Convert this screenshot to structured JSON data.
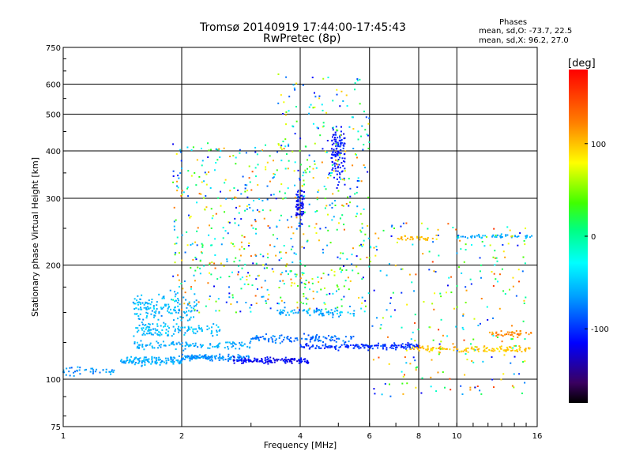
{
  "chart_data": {
    "type": "scatter",
    "title": "Tromsø 20140919 17:44:00-17:45:43",
    "subtitle": "RwPretec (8p)",
    "xlabel": "Frequency [MHz]",
    "ylabel": "Stationary phase Virtual Height [km]",
    "x_scale": "log",
    "y_scale": "log",
    "xlim": [
      1,
      16
    ],
    "ylim": [
      75,
      750
    ],
    "x_ticks": [
      1,
      2,
      4,
      6,
      8,
      10,
      16
    ],
    "y_ticks": [
      75,
      100,
      200,
      300,
      400,
      500,
      600,
      750
    ],
    "grid": true,
    "phases_box": {
      "title": "Phases",
      "line_o": "mean, sd,O: -73.7, 22.5",
      "line_x": "mean, sd,X:  96.2, 27.0"
    },
    "colorbar": {
      "label": "[deg]",
      "range": [
        -180,
        180
      ],
      "ticks": [
        100,
        0,
        -100
      ],
      "colormap": "rainbow-black-to-red"
    },
    "traces": [
      {
        "x_start": 1.0,
        "x_end": 1.35,
        "y": 105,
        "spread": 4,
        "phase": -70,
        "count": 40
      },
      {
        "x_start": 1.4,
        "x_end": 2.0,
        "y": 112,
        "spread": 4,
        "phase": -60,
        "count": 120
      },
      {
        "x_start": 2.0,
        "x_end": 3.0,
        "y": 114,
        "spread": 3,
        "phase": -70,
        "count": 120
      },
      {
        "x_start": 2.7,
        "x_end": 4.2,
        "y": 112,
        "spread": 3,
        "phase": -115,
        "count": 130
      },
      {
        "x_start": 4.0,
        "x_end": 8.0,
        "y": 122,
        "spread": 3,
        "phase": -100,
        "count": 160
      },
      {
        "x_start": 7.5,
        "x_end": 15.5,
        "y": 120,
        "spread": 3,
        "phase": 100,
        "count": 120
      },
      {
        "x_start": 1.5,
        "x_end": 3.0,
        "y": 123,
        "spread": 5,
        "phase": -60,
        "count": 110
      },
      {
        "x_start": 1.5,
        "x_end": 2.5,
        "y": 135,
        "spread": 8,
        "phase": -55,
        "count": 120
      },
      {
        "x_start": 1.5,
        "x_end": 2.2,
        "y": 155,
        "spread": 20,
        "phase": -55,
        "count": 150
      },
      {
        "x_start": 3.0,
        "x_end": 5.5,
        "y": 128,
        "spread": 5,
        "phase": -80,
        "count": 110
      },
      {
        "x_start": 3.5,
        "x_end": 5.5,
        "y": 150,
        "spread": 6,
        "phase": -60,
        "count": 80
      },
      {
        "x_start": 4.8,
        "x_end": 5.2,
        "y": 400,
        "spread": 90,
        "phase": -110,
        "count": 110
      },
      {
        "x_start": 3.9,
        "x_end": 4.1,
        "y": 285,
        "spread": 50,
        "phase": -115,
        "count": 60
      },
      {
        "x_start": 7.0,
        "x_end": 9.0,
        "y": 235,
        "spread": 5,
        "phase": 100,
        "count": 30
      },
      {
        "x_start": 10.0,
        "x_end": 15.5,
        "y": 238,
        "spread": 4,
        "phase": -60,
        "count": 50
      },
      {
        "x_start": 12.0,
        "x_end": 15.5,
        "y": 132,
        "spread": 4,
        "phase": 120,
        "count": 40
      }
    ],
    "scatter_region": {
      "x_range": [
        1.9,
        6.0
      ],
      "y_range": [
        150,
        420
      ],
      "phase_range": [
        -120,
        140
      ],
      "count": 650
    },
    "scatter_upper": {
      "x_range": [
        3.5,
        6.0
      ],
      "y_range": [
        400,
        640
      ],
      "phase_range": [
        -120,
        100
      ],
      "count": 90
    },
    "scatter_high_f": {
      "x_range": [
        6.0,
        15.0
      ],
      "y_range": [
        90,
        260
      ],
      "phase_range": [
        -120,
        160
      ],
      "count": 260
    }
  }
}
